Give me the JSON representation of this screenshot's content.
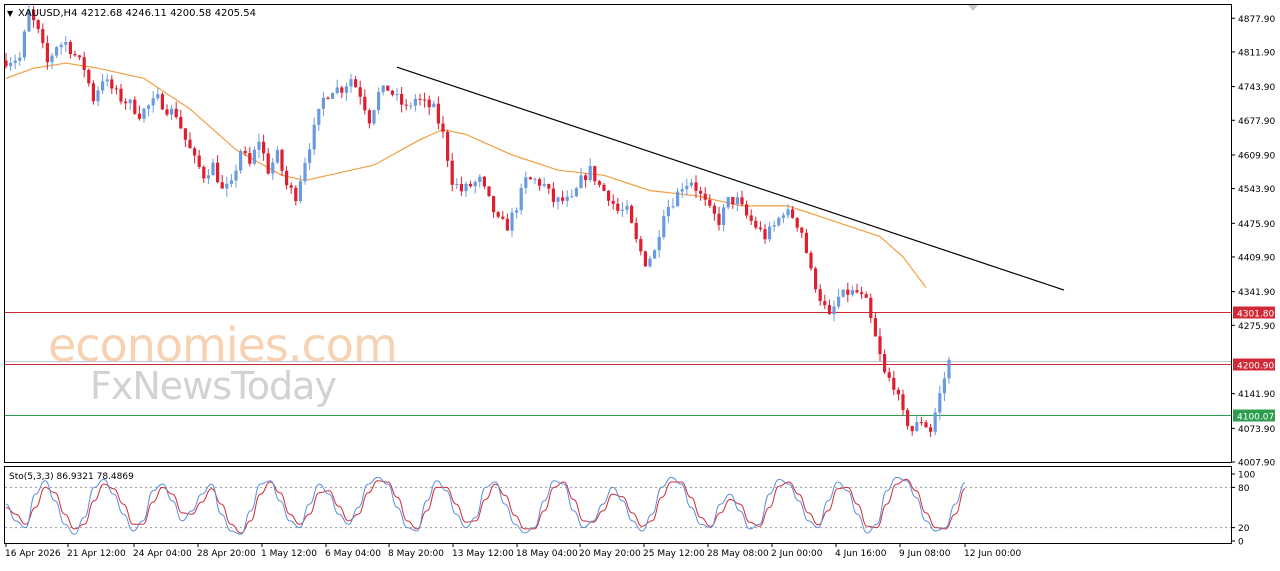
{
  "header": {
    "menu_glyph": "▼",
    "symbol": "XAUUSD,H4",
    "ohlc": "4212.68 4246.11 4200.58 4205.54"
  },
  "watermark": {
    "line1": "economies.com",
    "line2": "FxNewsToday"
  },
  "colors": {
    "bull": "#6a9be0",
    "bear": "#dd1f2f",
    "ma": "#f2a043",
    "trendline": "#000000",
    "level_red": "#d12a36",
    "level_green": "#2d9e4f",
    "stoch_main": "#5c8fd6",
    "stoch_signal": "#d12a36"
  },
  "chart_data": [
    {
      "type": "candlestick",
      "symbol": "XAUUSD",
      "timeframe": "H4",
      "ylim": [
        4007.9,
        4903.9
      ],
      "y_ticks": [
        "4877.90",
        "4811.90",
        "4743.90",
        "4677.90",
        "4609.90",
        "4543.90",
        "4475.90",
        "4409.90",
        "4341.90",
        "4275.90",
        "4141.90",
        "4073.90",
        "4007.90"
      ],
      "x_ticks": [
        "16 Apr 2026",
        "21 Apr 12:00",
        "24 Apr 04:00",
        "28 Apr 20:00",
        "1 May 12:00",
        "6 May 04:00",
        "8 May 20:00",
        "13 May 12:00",
        "18 May 04:00",
        "20 May 20:00",
        "25 May 12:00",
        "28 May 08:00",
        "2 Jun 00:00",
        "4 Jun 16:00",
        "9 Jun 08:00",
        "12 Jun 00:00"
      ],
      "price_path": [
        [
          0,
          4795
        ],
        [
          3,
          4800
        ],
        [
          5,
          4890
        ],
        [
          7,
          4850
        ],
        [
          9,
          4790
        ],
        [
          11,
          4825
        ],
        [
          13,
          4830
        ],
        [
          15,
          4805
        ],
        [
          17,
          4780
        ],
        [
          19,
          4720
        ],
        [
          21,
          4760
        ],
        [
          23,
          4740
        ],
        [
          25,
          4720
        ],
        [
          27,
          4710
        ],
        [
          29,
          4690
        ],
        [
          31,
          4705
        ],
        [
          33,
          4720
        ],
        [
          35,
          4700
        ],
        [
          37,
          4690
        ],
        [
          39,
          4640
        ],
        [
          41,
          4600
        ],
        [
          43,
          4570
        ],
        [
          45,
          4590
        ],
        [
          47,
          4540
        ],
        [
          49,
          4550
        ],
        [
          51,
          4620
        ],
        [
          53,
          4590
        ],
        [
          55,
          4640
        ],
        [
          57,
          4580
        ],
        [
          59,
          4610
        ],
        [
          61,
          4550
        ],
        [
          63,
          4530
        ],
        [
          65,
          4600
        ],
        [
          67,
          4660
        ],
        [
          69,
          4720
        ],
        [
          71,
          4740
        ],
        [
          73,
          4740
        ],
        [
          75,
          4760
        ],
        [
          77,
          4730
        ],
        [
          79,
          4680
        ],
        [
          81,
          4730
        ],
        [
          83,
          4740
        ],
        [
          85,
          4720
        ],
        [
          87,
          4700
        ],
        [
          89,
          4720
        ],
        [
          91,
          4710
        ],
        [
          93,
          4700
        ],
        [
          95,
          4650
        ],
        [
          97,
          4560
        ],
        [
          99,
          4540
        ],
        [
          101,
          4550
        ],
        [
          103,
          4560
        ],
        [
          105,
          4520
        ],
        [
          107,
          4480
        ],
        [
          109,
          4470
        ],
        [
          111,
          4510
        ],
        [
          113,
          4560
        ],
        [
          115,
          4560
        ],
        [
          117,
          4550
        ],
        [
          119,
          4520
        ],
        [
          121,
          4520
        ],
        [
          123,
          4520
        ],
        [
          125,
          4560
        ],
        [
          127,
          4580
        ],
        [
          129,
          4550
        ],
        [
          131,
          4530
        ],
        [
          133,
          4500
        ],
        [
          135,
          4500
        ],
        [
          137,
          4440
        ],
        [
          139,
          4400
        ],
        [
          141,
          4420
        ],
        [
          143,
          4500
        ],
        [
          145,
          4520
        ],
        [
          147,
          4550
        ],
        [
          149,
          4560
        ],
        [
          151,
          4530
        ],
        [
          153,
          4500
        ],
        [
          155,
          4480
        ],
        [
          157,
          4520
        ],
        [
          159,
          4520
        ],
        [
          161,
          4490
        ],
        [
          163,
          4470
        ],
        [
          165,
          4450
        ],
        [
          167,
          4470
        ],
        [
          169,
          4500
        ],
        [
          171,
          4490
        ],
        [
          173,
          4460
        ],
        [
          175,
          4380
        ],
        [
          177,
          4330
        ],
        [
          179,
          4290
        ],
        [
          181,
          4330
        ],
        [
          183,
          4340
        ],
        [
          185,
          4340
        ],
        [
          187,
          4320
        ],
        [
          189,
          4250
        ],
        [
          191,
          4180
        ],
        [
          193,
          4160
        ],
        [
          195,
          4100
        ],
        [
          197,
          4070
        ],
        [
          199,
          4090
        ],
        [
          201,
          4070
        ],
        [
          203,
          4140
        ],
        [
          205,
          4205
        ]
      ],
      "ma_path": [
        [
          0,
          4760
        ],
        [
          6,
          4780
        ],
        [
          13,
          4790
        ],
        [
          20,
          4780
        ],
        [
          30,
          4760
        ],
        [
          40,
          4700
        ],
        [
          50,
          4620
        ],
        [
          60,
          4570
        ],
        [
          65,
          4560
        ],
        [
          70,
          4570
        ],
        [
          80,
          4590
        ],
        [
          90,
          4640
        ],
        [
          95,
          4660
        ],
        [
          100,
          4650
        ],
        [
          110,
          4610
        ],
        [
          120,
          4580
        ],
        [
          130,
          4570
        ],
        [
          140,
          4540
        ],
        [
          150,
          4530
        ],
        [
          160,
          4510
        ],
        [
          170,
          4510
        ],
        [
          180,
          4480
        ],
        [
          190,
          4450
        ],
        [
          195,
          4410
        ],
        [
          200,
          4350
        ]
      ],
      "trendline": {
        "from": [
          85,
          4782
        ],
        "to": [
          230,
          4345
        ]
      },
      "levels": [
        {
          "label": "4301.80",
          "value": 4301.8,
          "color": "red"
        },
        {
          "label": "4200.90",
          "value": 4200.9,
          "color": "red"
        },
        {
          "label": "4100.07",
          "value": 4100.07,
          "color": "green"
        }
      ],
      "current_price": 4205.54
    },
    {
      "type": "line",
      "title": "Sto(5,3,3) 86.9321 78.4869",
      "ylim": [
        0,
        100
      ],
      "y_ticks": [
        "100",
        "80",
        "20",
        "0"
      ],
      "levels": [
        80,
        20
      ],
      "series": [
        {
          "name": "main",
          "values": [
            55,
            30,
            20,
            70,
            90,
            60,
            25,
            10,
            35,
            80,
            92,
            70,
            40,
            15,
            30,
            75,
            85,
            60,
            30,
            45,
            70,
            85,
            40,
            15,
            10,
            45,
            85,
            90,
            60,
            30,
            20,
            55,
            85,
            70,
            40,
            25,
            50,
            85,
            95,
            85,
            50,
            20,
            15,
            60,
            90,
            75,
            40,
            20,
            35,
            80,
            88,
            55,
            25,
            12,
            20,
            60,
            90,
            85,
            45,
            20,
            30,
            55,
            80,
            60,
            30,
            15,
            40,
            80,
            95,
            85,
            50,
            25,
            20,
            55,
            70,
            45,
            18,
            25,
            70,
            92,
            85,
            60,
            30,
            20,
            60,
            88,
            75,
            40,
            12,
            25,
            75,
            95,
            90,
            65,
            30,
            15,
            20,
            55,
            87
          ]
        },
        {
          "name": "signal",
          "values": [
            50,
            40,
            25,
            50,
            80,
            72,
            40,
            18,
            25,
            60,
            85,
            78,
            55,
            25,
            25,
            58,
            80,
            70,
            42,
            40,
            58,
            78,
            55,
            25,
            12,
            30,
            70,
            88,
            72,
            40,
            25,
            40,
            72,
            75,
            52,
            30,
            40,
            72,
            90,
            88,
            65,
            30,
            18,
            45,
            80,
            80,
            55,
            28,
            30,
            62,
            85,
            68,
            38,
            18,
            18,
            45,
            80,
            88,
            62,
            30,
            28,
            45,
            70,
            66,
            42,
            22,
            30,
            65,
            88,
            88,
            65,
            35,
            22,
            42,
            62,
            55,
            28,
            22,
            50,
            82,
            88,
            70,
            42,
            24,
            45,
            78,
            80,
            55,
            22,
            20,
            55,
            85,
            92,
            75,
            42,
            20,
            18,
            40,
            78
          ]
        }
      ]
    }
  ]
}
